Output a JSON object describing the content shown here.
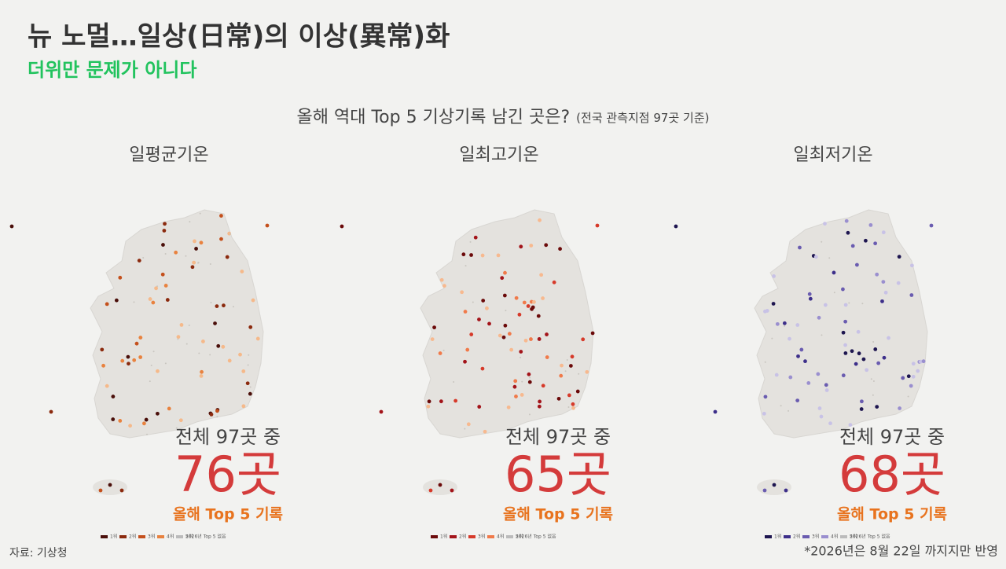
{
  "header": {
    "title": "뉴 노멀…일상(日常)의 이상(異常)화",
    "subtitle": "더위만 문제가 아니다"
  },
  "heading": {
    "text": "올해 역대 Top 5 기상기록 남긴 곳은?",
    "note": "(전국 관측지점 97곳 기준)"
  },
  "panels": [
    {
      "title": "일평균기온",
      "total": "전체 97곳 중",
      "count": "76곳",
      "caption": "올해 Top 5 기록",
      "legend": [
        {
          "label": "1위",
          "color": "#4a0f0a"
        },
        {
          "label": "2위",
          "color": "#8b2a0e"
        },
        {
          "label": "3위",
          "color": "#c4501c"
        },
        {
          "label": "4위",
          "color": "#e8823f"
        },
        {
          "label": "5위",
          "color": "#f5b98a"
        },
        {
          "label": "2026년 Top 5 없음",
          "color": "#bbbbbb"
        }
      ]
    },
    {
      "title": "일최고기온",
      "total": "전체 97곳 중",
      "count": "65곳",
      "caption": "올해 Top 5 기록",
      "legend": [
        {
          "label": "1위",
          "color": "#6b0a0a"
        },
        {
          "label": "2위",
          "color": "#a3141a"
        },
        {
          "label": "3위",
          "color": "#d63a2a"
        },
        {
          "label": "4위",
          "color": "#f07a4a"
        },
        {
          "label": "5위",
          "color": "#f7b98f"
        },
        {
          "label": "2026년 Top 5 없음",
          "color": "#bbbbbb"
        }
      ]
    },
    {
      "title": "일최저기온",
      "total": "전체 97곳 중",
      "count": "68곳",
      "caption": "올해 Top 5 기록",
      "legend": [
        {
          "label": "1위",
          "color": "#1e1650"
        },
        {
          "label": "2위",
          "color": "#3d2f8a"
        },
        {
          "label": "3위",
          "color": "#6a5cb0"
        },
        {
          "label": "4위",
          "color": "#9a8fcf"
        },
        {
          "label": "5위",
          "color": "#c8c2e6"
        },
        {
          "label": "2026년 Top 5 없음",
          "color": "#bbbbbb"
        }
      ]
    }
  ],
  "footer": {
    "source": "자료: 기상청",
    "note": "*2026년은 8월 22일 까지지만 반영"
  }
}
